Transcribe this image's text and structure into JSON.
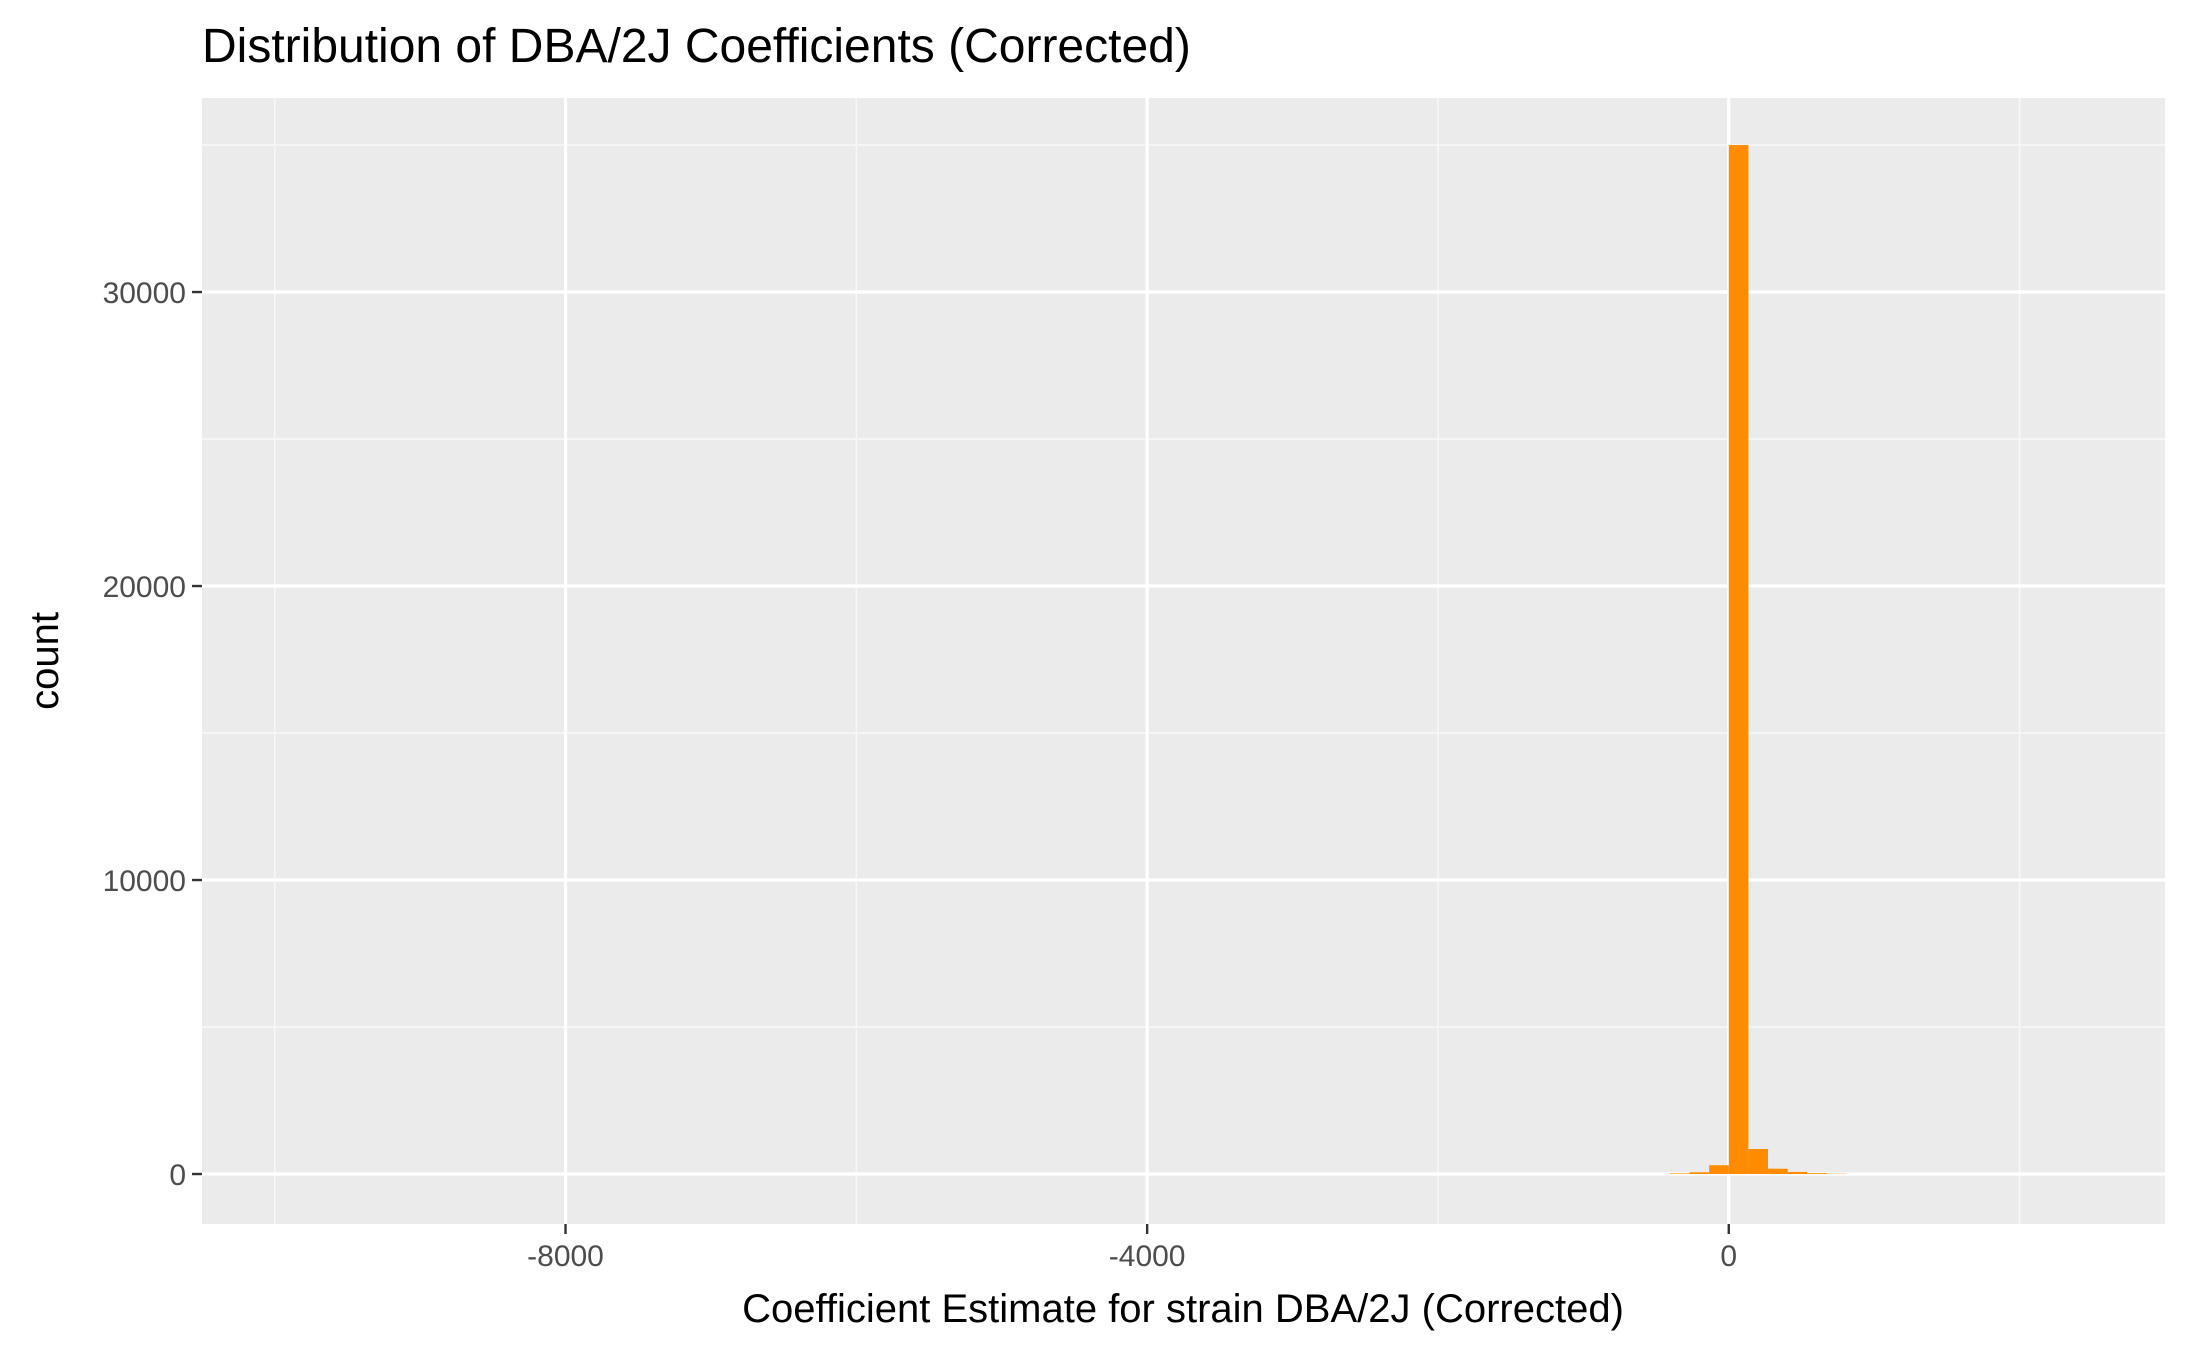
{
  "chart_data": {
    "type": "bar",
    "title": "Distribution of DBA/2J Coefficients (Corrected)",
    "xlabel": "Coefficient Estimate for strain DBA/2J (Corrected)",
    "ylabel": "count",
    "xlim": [
      -10500,
      3000
    ],
    "ylim": [
      -1700,
      36600
    ],
    "x_ticks": [
      -8000,
      -4000,
      0
    ],
    "x_tick_labels": [
      "-8000",
      "-4000",
      "0"
    ],
    "y_ticks": [
      0,
      10000,
      20000,
      30000
    ],
    "y_tick_labels": [
      "0",
      "10000",
      "20000",
      "30000"
    ],
    "bin_width": 135,
    "bars": [
      {
        "x0": -405,
        "x1": -270,
        "count": 20
      },
      {
        "x0": -270,
        "x1": -135,
        "count": 60
      },
      {
        "x0": -135,
        "x1": 0,
        "count": 300
      },
      {
        "x0": 0,
        "x1": 135,
        "count": 35000
      },
      {
        "x0": 135,
        "x1": 270,
        "count": 850
      },
      {
        "x0": 270,
        "x1": 405,
        "count": 180
      },
      {
        "x0": 405,
        "x1": 540,
        "count": 70
      },
      {
        "x0": 540,
        "x1": 675,
        "count": 30
      },
      {
        "x0": 675,
        "x1": 810,
        "count": 10
      }
    ],
    "grid": true,
    "colors": {
      "bar": "#ff8c00",
      "panel": "#ebebeb",
      "grid_major": "#ffffff",
      "grid_minor": "#f7f7f7"
    }
  }
}
